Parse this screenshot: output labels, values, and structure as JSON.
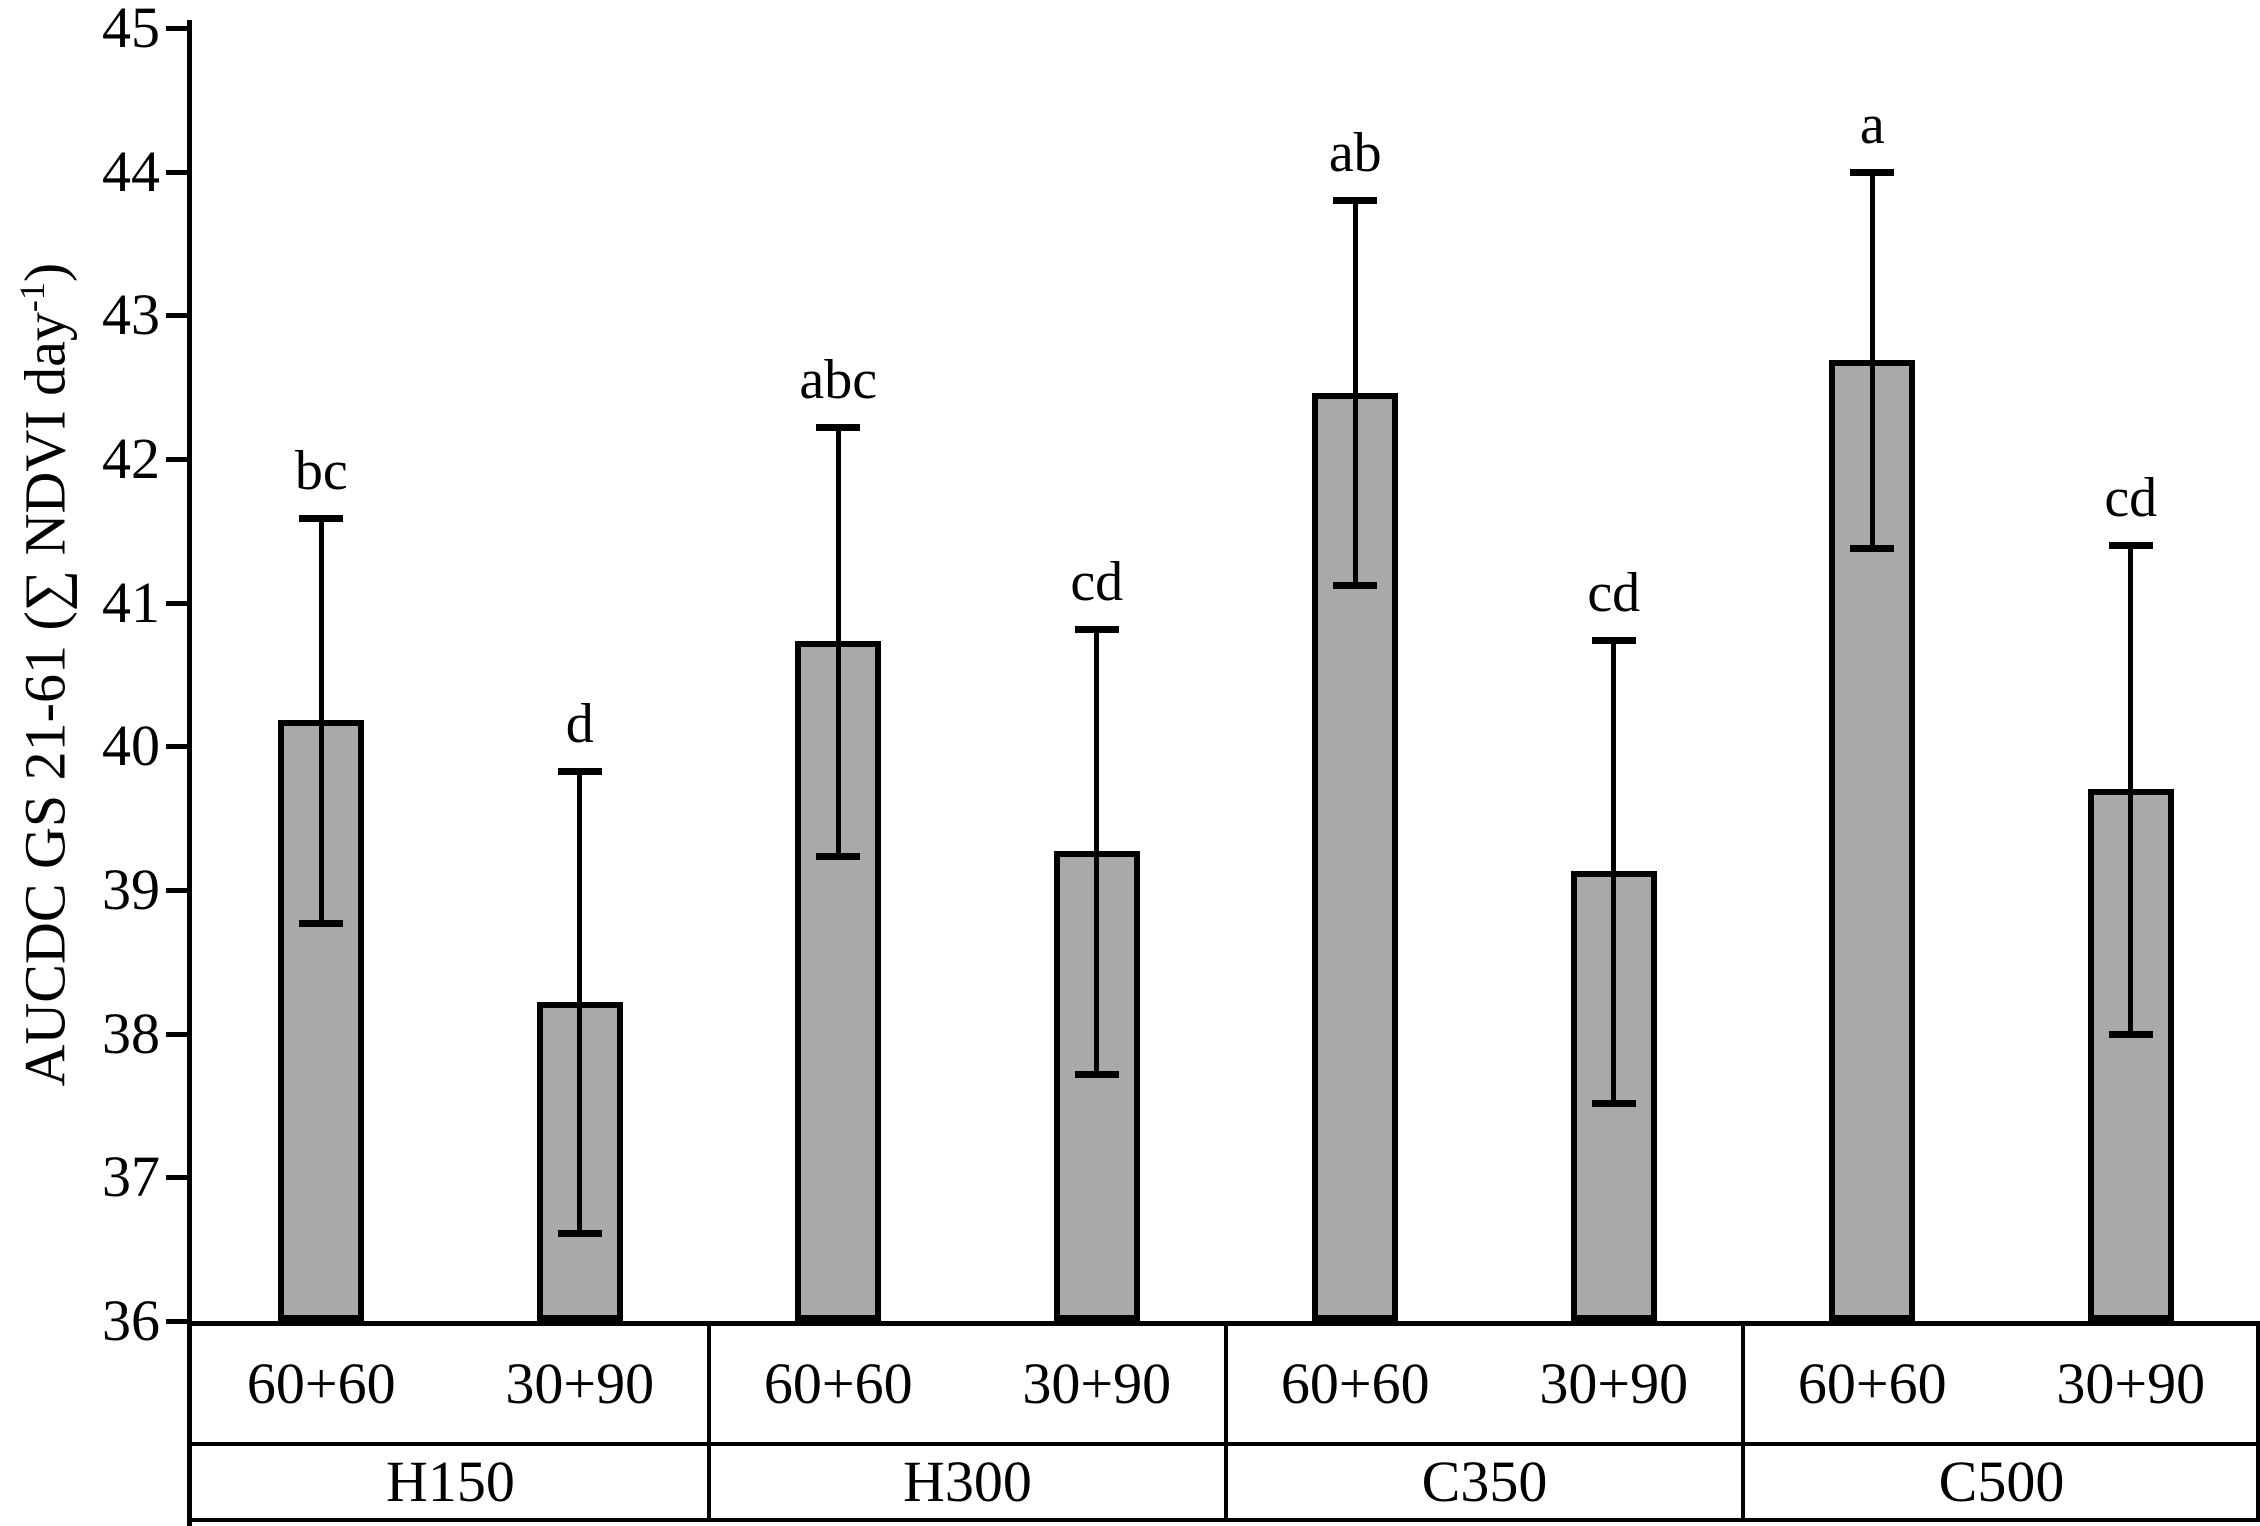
{
  "figure": {
    "background": "#ffffff",
    "text_color": "#000000"
  },
  "chart_data": {
    "type": "bar",
    "title": "",
    "xlabel": "",
    "ylabel": "AUCDC GS 21-61 (∑ NDVI day-1)",
    "ylabel_parts": {
      "main": "AUCDC GS 21-61 (∑ NDVI day",
      "superscript": "-1",
      "close": ")"
    },
    "ylim": [
      36,
      45
    ],
    "yticks": [
      36,
      37,
      38,
      39,
      40,
      41,
      42,
      43,
      44,
      45
    ],
    "grid": false,
    "legend": "none",
    "bar_color": "#a9a9a9",
    "bar_border_color": "#000000",
    "error_bar_color": "#000000",
    "groups": [
      "H150",
      "H300",
      "C350",
      "C500"
    ],
    "treatments": [
      "60+60",
      "30+90"
    ],
    "series": [
      {
        "group": "H150",
        "treatment": "60+60",
        "value": 40.18,
        "error": 1.41,
        "letter": "bc"
      },
      {
        "group": "H150",
        "treatment": "30+90",
        "value": 38.22,
        "error": 1.61,
        "letter": "d"
      },
      {
        "group": "H300",
        "treatment": "60+60",
        "value": 40.73,
        "error": 1.49,
        "letter": "abc"
      },
      {
        "group": "H300",
        "treatment": "30+90",
        "value": 39.27,
        "error": 1.55,
        "letter": "cd"
      },
      {
        "group": "C350",
        "treatment": "60+60",
        "value": 42.46,
        "error": 1.34,
        "letter": "ab"
      },
      {
        "group": "C350",
        "treatment": "30+90",
        "value": 39.13,
        "error": 1.61,
        "letter": "cd"
      },
      {
        "group": "C500",
        "treatment": "60+60",
        "value": 42.69,
        "error": 1.31,
        "letter": "a"
      },
      {
        "group": "C500",
        "treatment": "30+90",
        "value": 39.7,
        "error": 1.7,
        "letter": "cd"
      }
    ]
  }
}
